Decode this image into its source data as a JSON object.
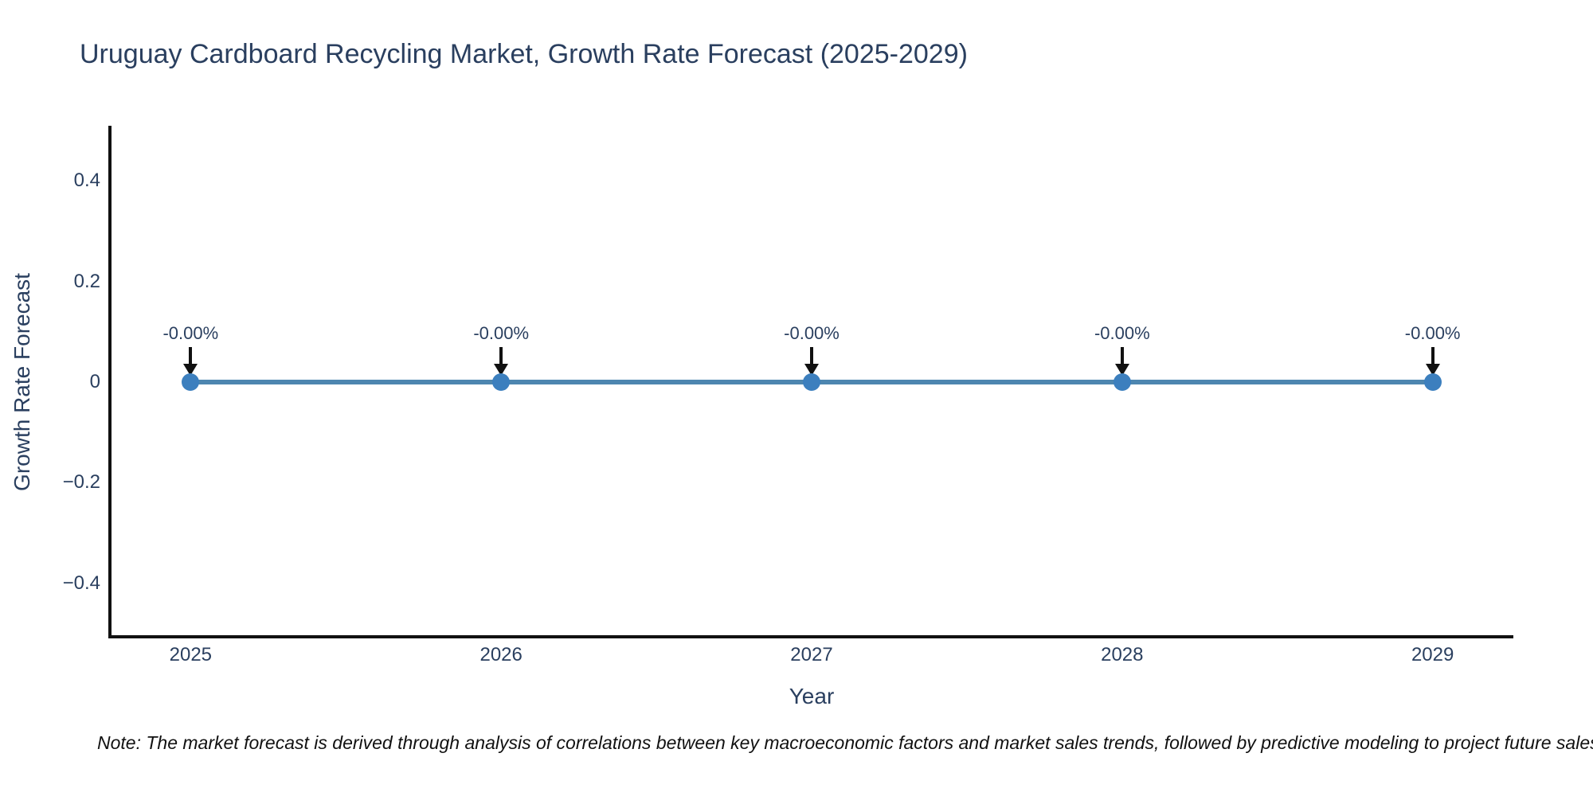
{
  "chart_data": {
    "type": "line",
    "title": "Uruguay Cardboard Recycling Market, Growth Rate Forecast (2025-2029)",
    "xlabel": "Year",
    "ylabel": "Growth Rate Forecast",
    "x": [
      2025,
      2026,
      2027,
      2028,
      2029
    ],
    "series": [
      {
        "name": "Growth Rate Forecast",
        "values": [
          0,
          0,
          0,
          0,
          0
        ]
      }
    ],
    "point_labels": [
      "-0.00%",
      "-0.00%",
      "-0.00%",
      "-0.00%",
      "-0.00%"
    ],
    "x_tick_labels": [
      "2025",
      "2026",
      "2027",
      "2028",
      "2029"
    ],
    "y_ticks": [
      {
        "value": 0.4,
        "label": "0.4"
      },
      {
        "value": 0.2,
        "label": "0.2"
      },
      {
        "value": 0,
        "label": "0"
      },
      {
        "value": -0.2,
        "label": "−0.2"
      },
      {
        "value": -0.4,
        "label": "−0.4"
      }
    ],
    "xlim": [
      2024.74,
      2029.26
    ],
    "ylim": [
      -0.506,
      0.506
    ],
    "grid": false,
    "legend": "none",
    "colors": {
      "line": "#4d86b0",
      "marker": "#3c7fbe",
      "axis": "#111111",
      "text": "#2a3f5f",
      "annotation_arrow": "#111111",
      "background": "#ffffff"
    }
  },
  "note": {
    "text": "Note: The market forecast is derived through analysis of correlations between key macroeconomic factors and market sales trends, followed by predictive modeling to project future sales"
  }
}
